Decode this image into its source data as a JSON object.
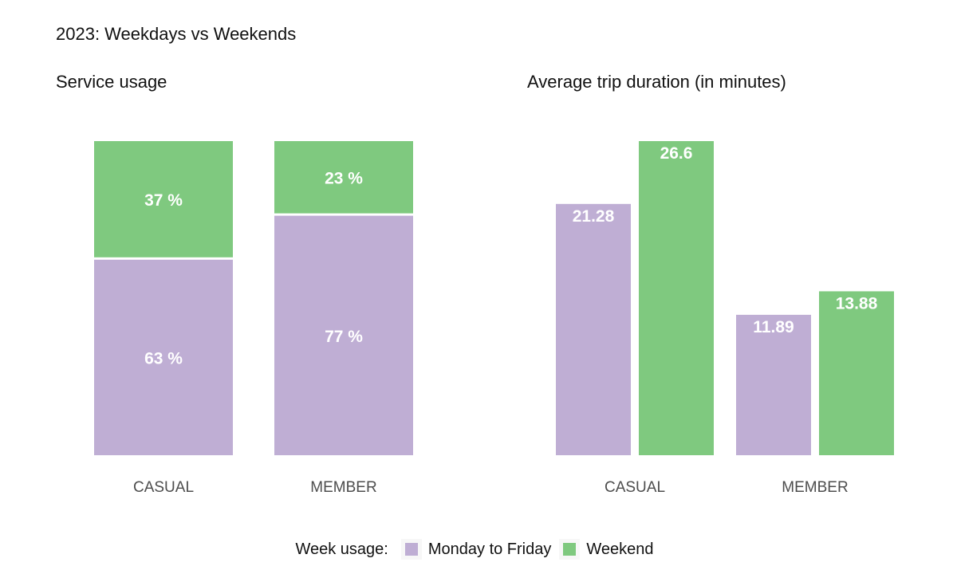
{
  "title": "2023: Weekdays vs Weekends",
  "colors": {
    "weekday": "#bfaed4",
    "weekend": "#7fc97f"
  },
  "legend": {
    "title": "Week usage:",
    "items": [
      {
        "label": "Monday to Friday",
        "color": "#bfaed4"
      },
      {
        "label": "Weekend",
        "color": "#7fc97f"
      }
    ]
  },
  "chart_data": [
    {
      "type": "bar",
      "stacked": true,
      "title": "Service usage",
      "categories": [
        "CASUAL",
        "MEMBER"
      ],
      "series": [
        {
          "name": "Monday to Friday",
          "values": [
            63,
            77
          ],
          "labels": [
            "63 %",
            "77 %"
          ]
        },
        {
          "name": "Weekend",
          "values": [
            37,
            23
          ],
          "labels": [
            "37 %",
            "23 %"
          ]
        }
      ],
      "ylim": [
        0,
        100
      ],
      "grid": false,
      "legend_position": "bottom"
    },
    {
      "type": "bar",
      "stacked": false,
      "title": "Average trip duration (in minutes)",
      "categories": [
        "CASUAL",
        "MEMBER"
      ],
      "series": [
        {
          "name": "Monday to Friday",
          "values": [
            21.28,
            11.89
          ],
          "labels": [
            "21.28",
            "11.89"
          ]
        },
        {
          "name": "Weekend",
          "values": [
            26.6,
            13.88
          ],
          "labels": [
            "26.6",
            "13.88"
          ]
        }
      ],
      "ylim": [
        0,
        26.6
      ],
      "grid": false,
      "legend_position": "bottom"
    }
  ]
}
